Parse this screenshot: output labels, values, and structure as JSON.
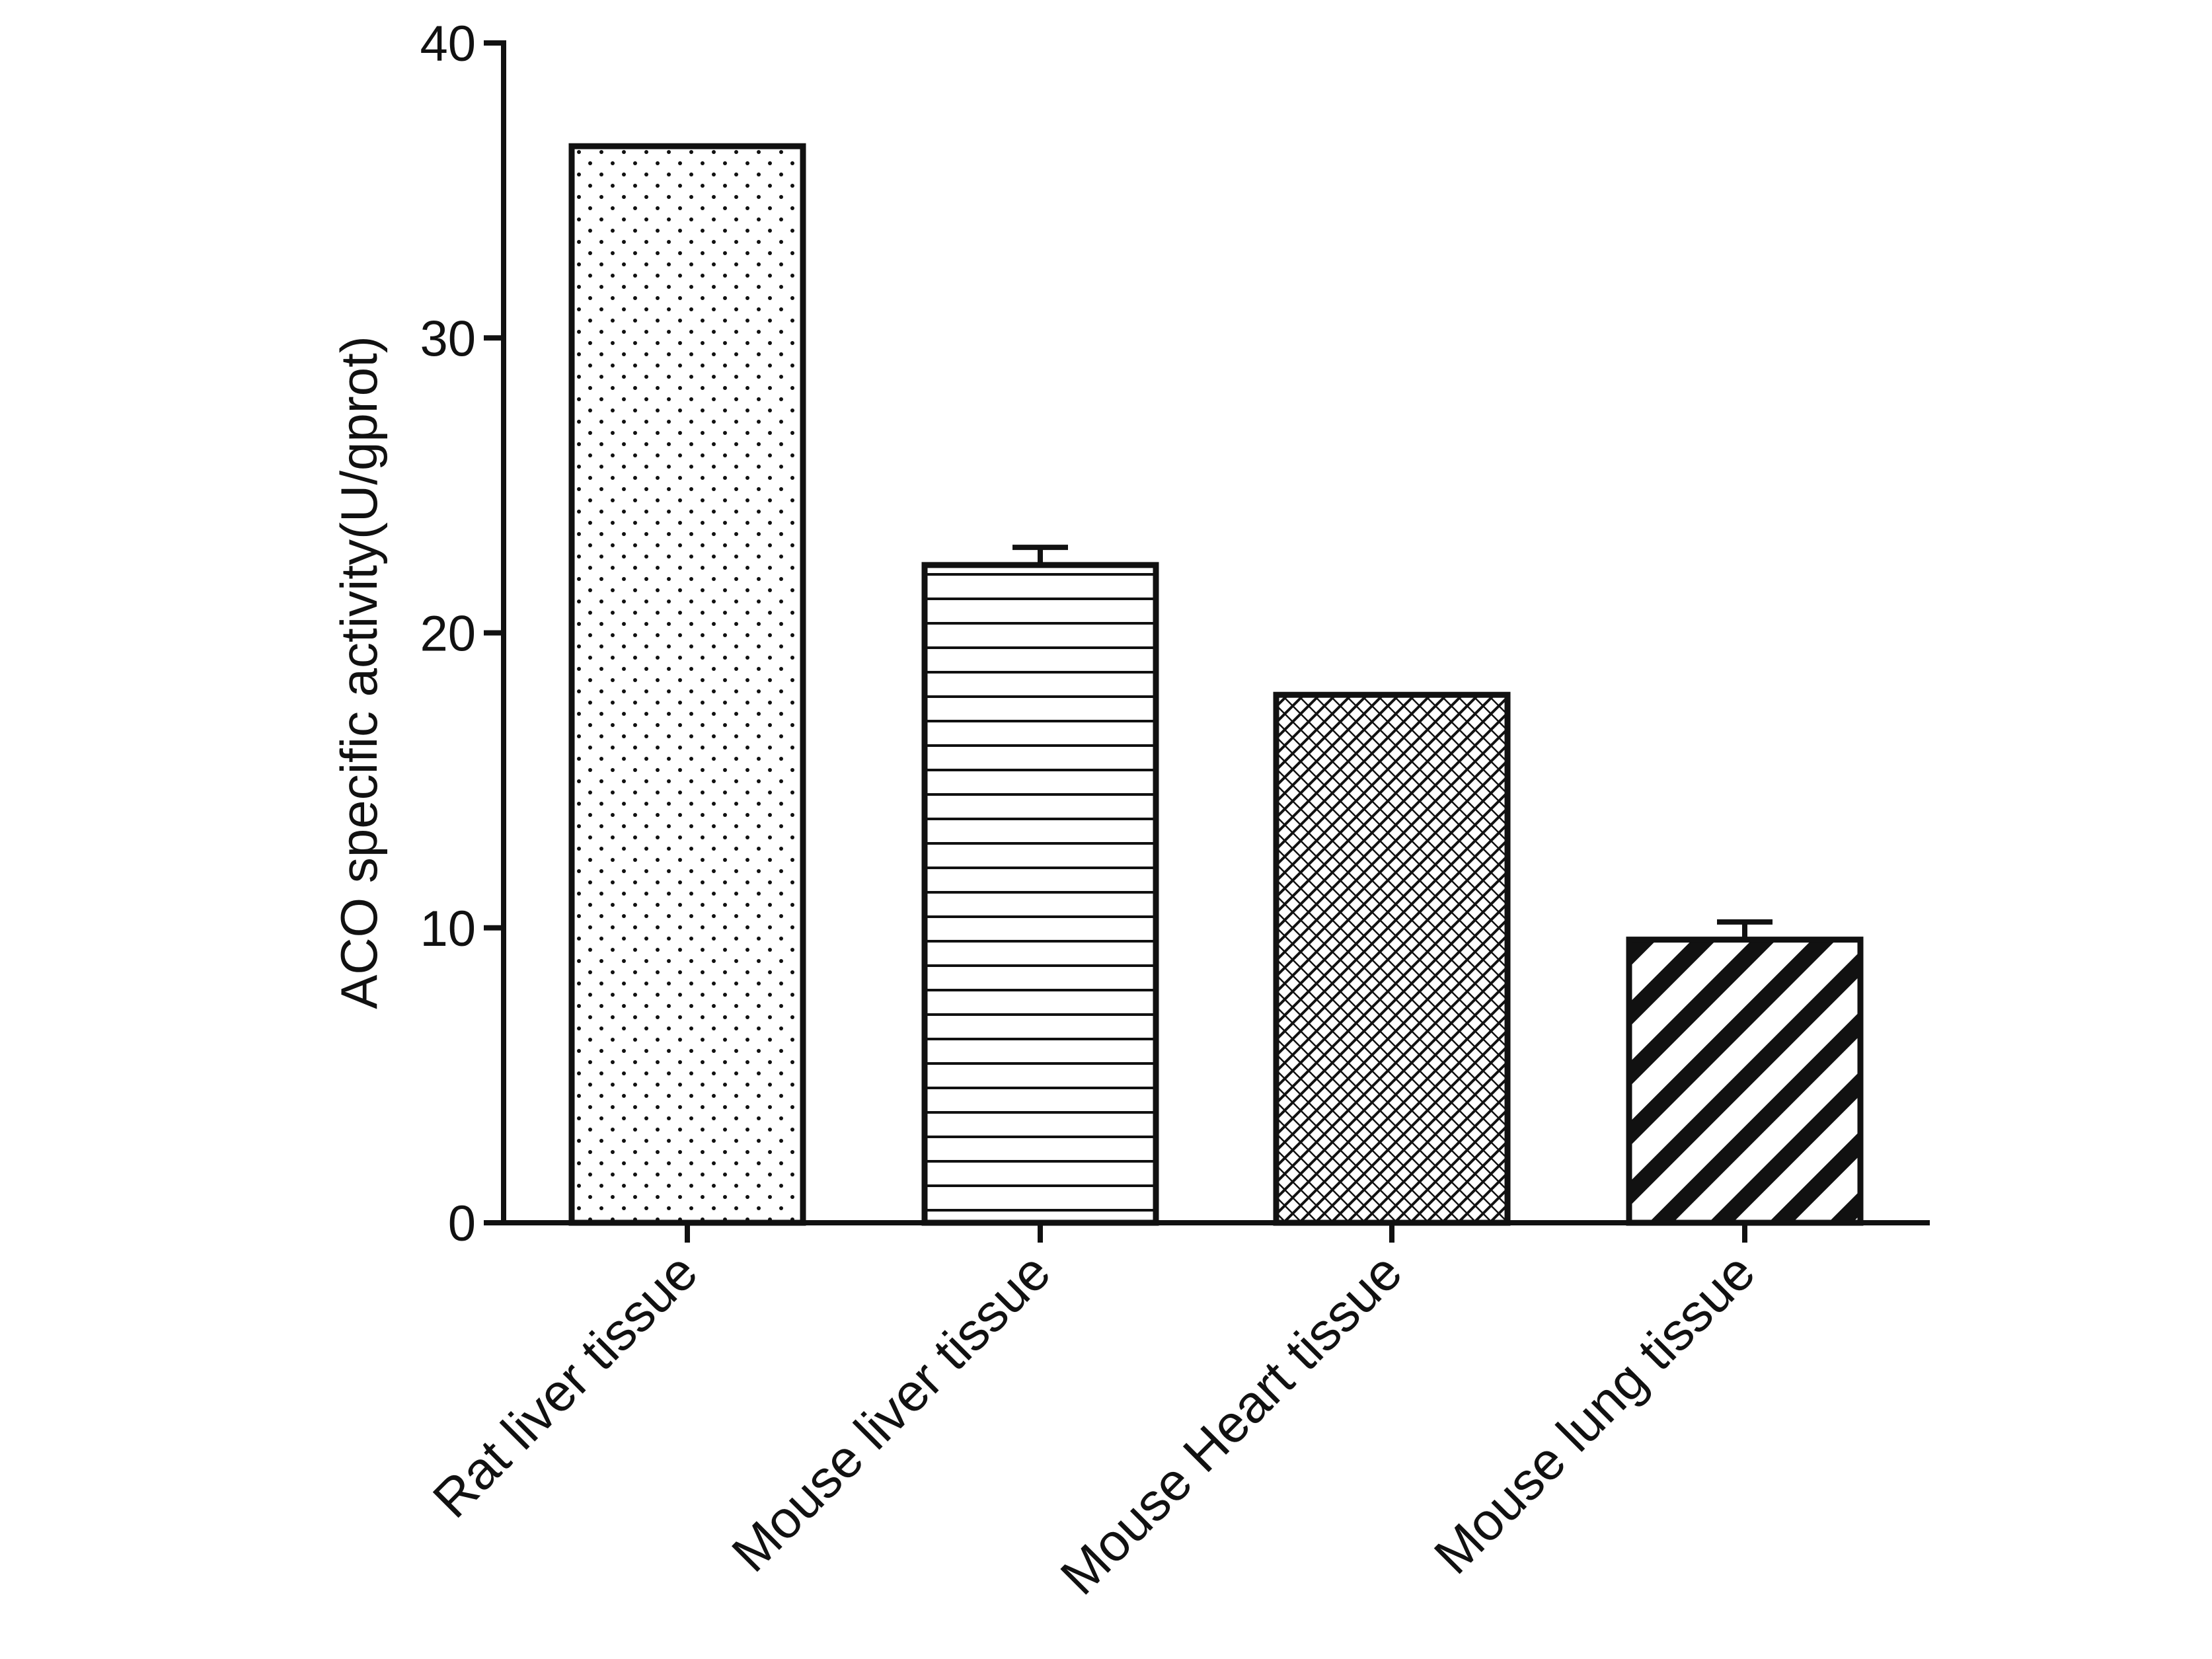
{
  "chart_data": {
    "type": "bar",
    "title": "",
    "xlabel": "",
    "ylabel": "ACO specific activity(U/gprot)",
    "ylim": [
      0,
      40
    ],
    "yticks": [
      0,
      10,
      20,
      30,
      40
    ],
    "grid": false,
    "legend": "none",
    "categories": [
      "Rat liver tissue",
      "Mouse liver tissue",
      "Mouse Heart tissue",
      "Mouse lung tissue"
    ],
    "series": [
      {
        "values": [
          36.5,
          22.3,
          17.9,
          9.6
        ],
        "error": [
          0,
          0.6,
          0,
          0.6
        ],
        "fill_patterns": [
          "dots",
          "horizontal-lines",
          "crosshatch",
          "diagonal-stripes"
        ],
        "color": "#111111"
      }
    ]
  }
}
